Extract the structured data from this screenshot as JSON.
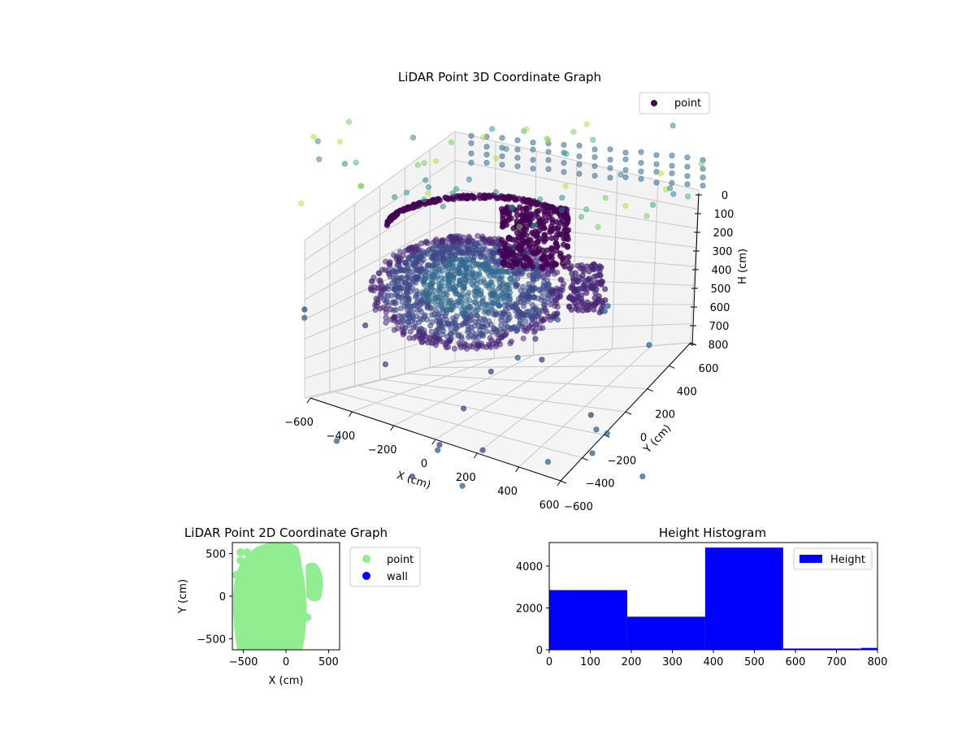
{
  "chart_data": [
    {
      "type": "scatter",
      "title": "LiDAR Point 3D Coordinate Graph",
      "xlabel": "X (cm)",
      "ylabel": "Y (cm)",
      "zlabel": "H (cm)",
      "x_ticks": [
        "−600",
        "−400",
        "−200",
        "0",
        "200",
        "400",
        "600"
      ],
      "y_ticks": [
        "600",
        "400",
        "200",
        "0",
        "−200",
        "−400",
        "−600"
      ],
      "z_ticks": [
        "0",
        "100",
        "200",
        "300",
        "400",
        "500",
        "600",
        "700",
        "800"
      ],
      "xlim": [
        -600,
        600
      ],
      "ylim": [
        -600,
        600
      ],
      "zlim": [
        800,
        0
      ],
      "legend": {
        "entries": [
          "point"
        ],
        "placement": "top-right"
      },
      "colormap": "viridis",
      "grid": true
    },
    {
      "type": "scatter",
      "title": "LiDAR Point 2D Coordinate Graph",
      "xlabel": "X (cm)",
      "ylabel": "Y (cm)",
      "x_ticks": [
        "−500",
        "0",
        "500"
      ],
      "y_ticks": [
        "500",
        "0",
        "−500"
      ],
      "xlim": [
        -630,
        630
      ],
      "ylim": [
        -630,
        630
      ],
      "series": [
        {
          "name": "point",
          "color": "#90ee90"
        },
        {
          "name": "wall",
          "color": "#0000ff"
        }
      ],
      "legend": {
        "placement": "outside-right"
      }
    },
    {
      "type": "bar",
      "title": "Height Histogram",
      "bin_edges": [
        0,
        190,
        380,
        570,
        760,
        800
      ],
      "values": [
        2850,
        1580,
        4880,
        60,
        90
      ],
      "color": "#0000ff",
      "x_ticks": [
        "0",
        "100",
        "200",
        "300",
        "400",
        "500",
        "600",
        "700",
        "800"
      ],
      "y_ticks": [
        "0",
        "2000",
        "4000"
      ],
      "xlim": [
        0,
        800
      ],
      "ylim": [
        0,
        5120
      ],
      "legend": {
        "entries": [
          "Height"
        ],
        "placement": "top-right"
      }
    }
  ]
}
